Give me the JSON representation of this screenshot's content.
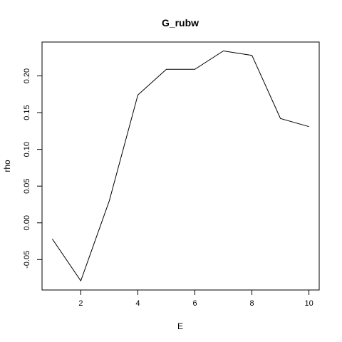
{
  "chart_data": {
    "type": "line",
    "title": "G_rubw",
    "xlabel": "E",
    "ylabel": "rho",
    "x": [
      1,
      2,
      3,
      4,
      5,
      6,
      7,
      8,
      9,
      10
    ],
    "series": [
      {
        "values": [
          -0.022,
          -0.079,
          0.03,
          0.174,
          0.209,
          0.209,
          0.234,
          0.228,
          0.142,
          0.131
        ]
      }
    ],
    "xlim": [
      0.64,
      10.36
    ],
    "ylim": [
      -0.0914,
      0.2461
    ],
    "xticks": [
      2,
      4,
      6,
      8,
      10
    ],
    "yticks": [
      -0.05,
      0.0,
      0.05,
      0.1,
      0.15,
      0.2
    ],
    "xtick_labels": [
      "2",
      "4",
      "6",
      "8",
      "10"
    ],
    "ytick_labels": [
      "-0.05",
      "0.00",
      "0.05",
      "0.10",
      "0.15",
      "0.20"
    ],
    "grid": false,
    "line_color": "#000000"
  }
}
